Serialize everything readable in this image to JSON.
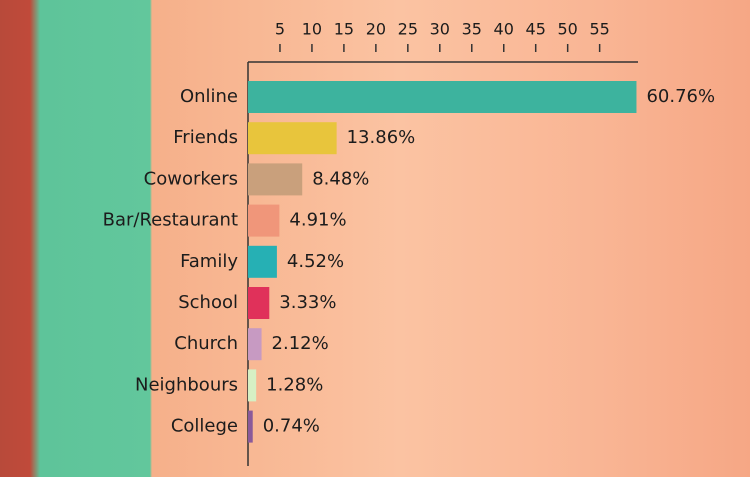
{
  "chart_data": {
    "type": "hbar",
    "categories": [
      "Online",
      "Friends",
      "Coworkers",
      "Bar/Restaurant",
      "Family",
      "School",
      "Church",
      "Neighbours",
      "College"
    ],
    "values": [
      60.76,
      13.86,
      8.48,
      4.91,
      4.52,
      3.33,
      2.12,
      1.28,
      0.74
    ],
    "value_labels": [
      "60.76%",
      "13.86%",
      "8.48%",
      "4.91%",
      "4.52%",
      "3.33%",
      "2.12%",
      "1.28%",
      "0.74%"
    ],
    "colors": [
      "#3db39e",
      "#e8c53c",
      "#c9a07c",
      "#f0967a",
      "#26b0b4",
      "#e0315a",
      "#c79ac2",
      "#d6f0c4",
      "#8a5a9a"
    ],
    "xlim": [
      0,
      61
    ],
    "xticks": [
      5,
      10,
      15,
      20,
      25,
      30,
      35,
      40,
      45,
      50,
      55
    ]
  }
}
